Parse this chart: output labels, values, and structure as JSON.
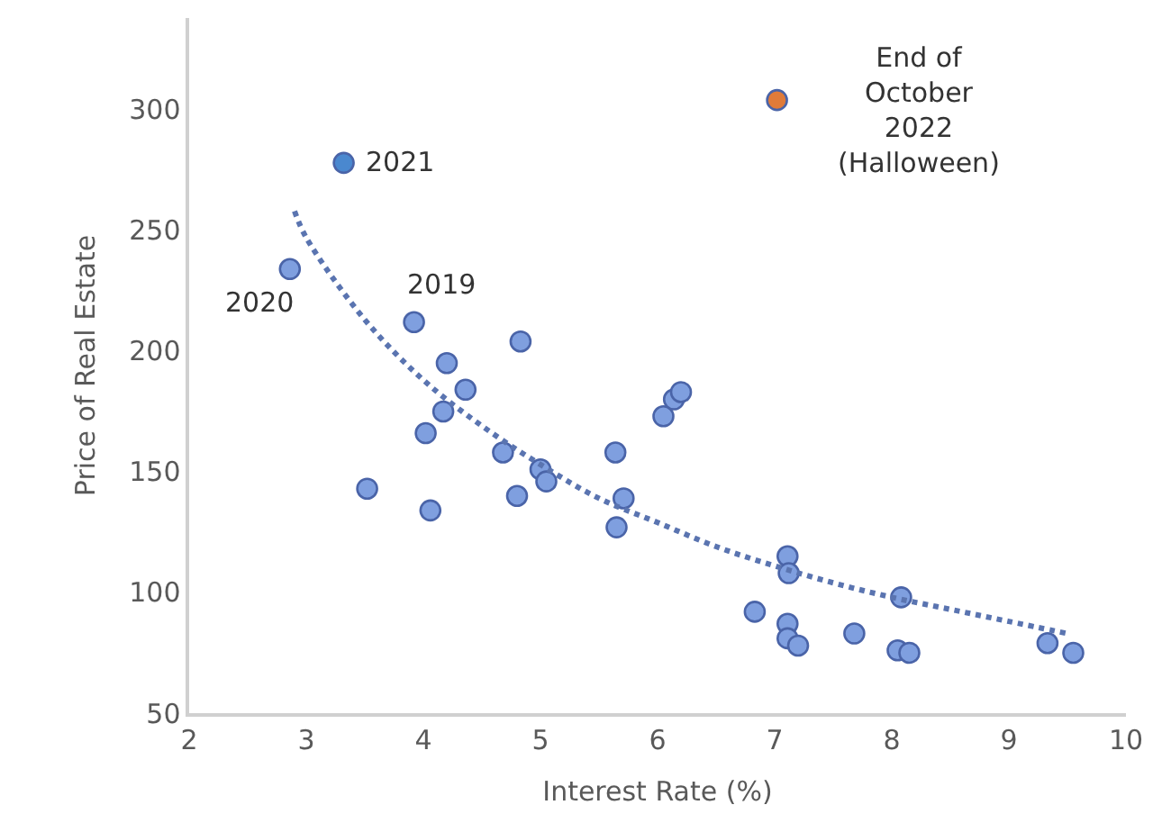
{
  "chart_data": {
    "type": "scatter",
    "xlabel": "Interest Rate (%)",
    "ylabel": "Price of Real Estate",
    "xlim": [
      2,
      10
    ],
    "xticks": [
      2,
      3,
      4,
      5,
      6,
      7,
      8,
      9,
      10
    ],
    "ylim": [
      50,
      338
    ],
    "yticks": [
      50,
      100,
      150,
      200,
      250,
      300
    ],
    "marker": "circle",
    "series": [
      {
        "color": "#7f9fdf",
        "x": [
          2.86,
          3.92,
          4.83,
          4.2,
          4.36,
          4.17,
          4.02,
          4.68,
          5.0,
          5.05,
          5.64,
          3.52,
          4.06,
          4.8,
          5.71,
          5.65,
          6.05,
          6.14,
          6.2,
          7.11,
          7.12,
          6.83,
          7.11,
          7.11,
          7.2,
          7.68,
          8.08,
          8.05,
          8.15,
          9.33,
          9.55
        ],
        "values": [
          234,
          212,
          204,
          195,
          184,
          175,
          166,
          158,
          151,
          146,
          158,
          143,
          134,
          140,
          139,
          127,
          173,
          180,
          183,
          115,
          108,
          92,
          87,
          81,
          78,
          83,
          98,
          76,
          75,
          79,
          75
        ]
      },
      {
        "color": "#4a88cf",
        "x": [
          3.32
        ],
        "values": [
          278
        ]
      },
      {
        "color": "#e07b39",
        "x": [
          7.02
        ],
        "values": [
          304
        ]
      },
      {
        "type": "line",
        "marker": "none",
        "color": "#5a74b0",
        "line_style": "dotted",
        "x": [
          2.9,
          3,
          3.5,
          4,
          4.5,
          5,
          5.5,
          6,
          6.5,
          7,
          7.5,
          8,
          8.5,
          9,
          9.5
        ],
        "values": [
          258,
          247,
          213,
          188,
          169,
          153,
          139,
          129,
          119,
          111,
          104,
          98,
          93,
          88,
          83
        ]
      }
    ],
    "annotations": [
      {
        "text": "2021",
        "x": 3.32,
        "y": 278
      },
      {
        "text": "2020",
        "x": 2.86,
        "y": 234
      },
      {
        "text": "2019",
        "x": 3.92,
        "y": 212
      },
      {
        "text": "End of\nOctober\n2022\n(Halloween)",
        "x": 7.02,
        "y": 304
      }
    ]
  }
}
